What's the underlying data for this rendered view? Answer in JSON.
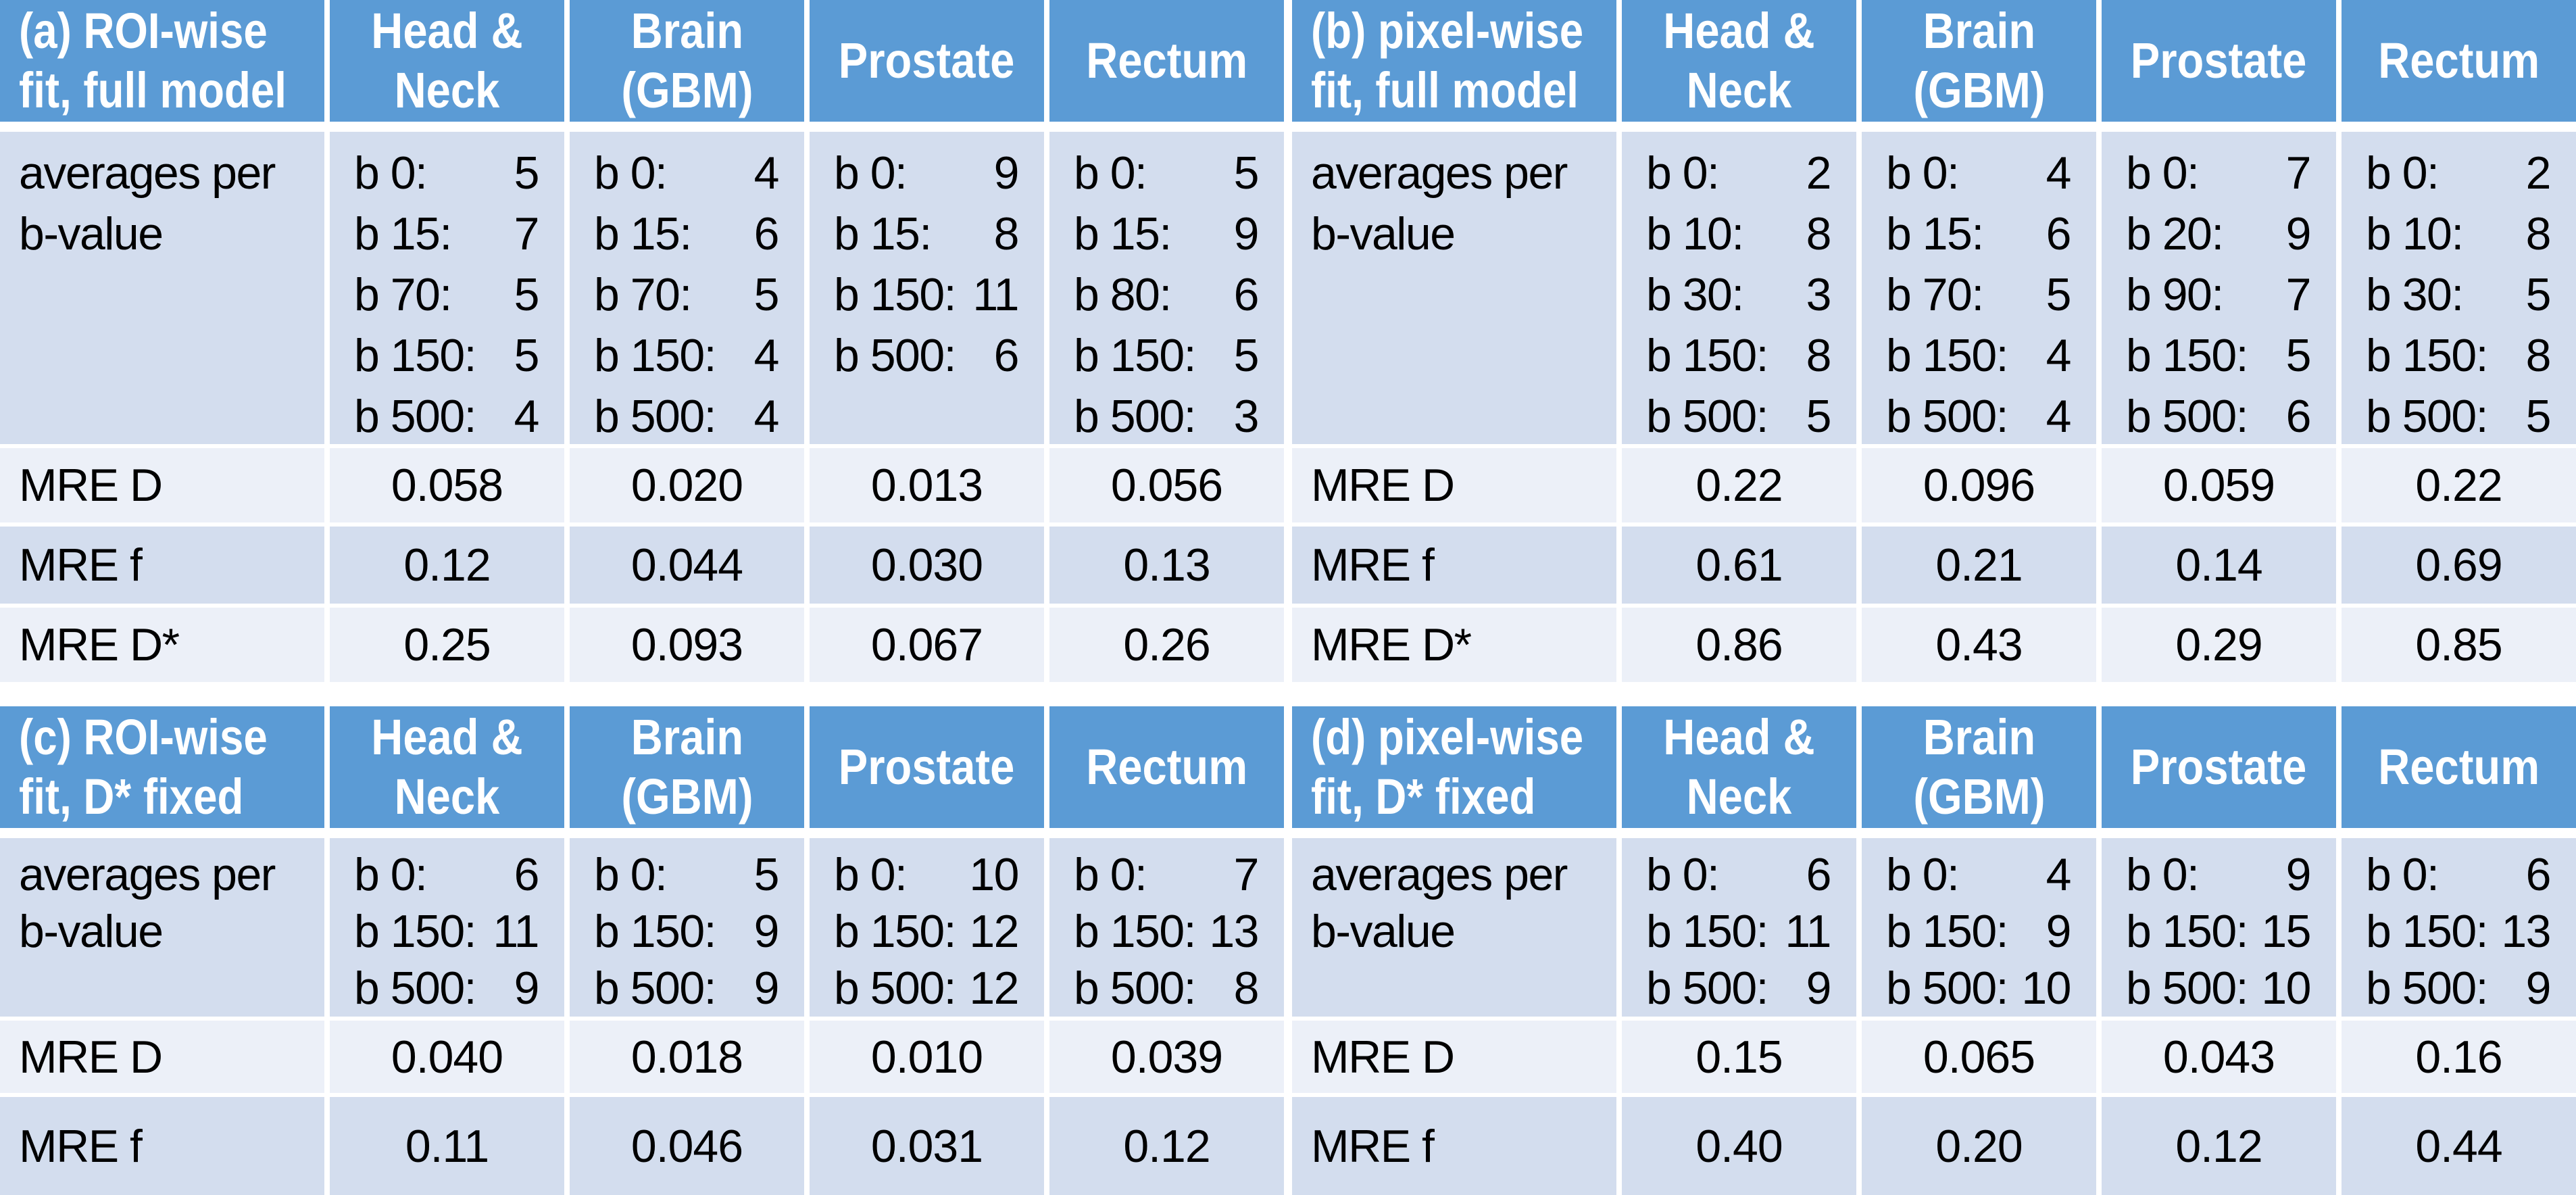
{
  "colors": {
    "header_bg": "#5B9BD5",
    "header_text": "#FFFFFF",
    "band_dark": "#D3DDEE",
    "band_light": "#ECF0F8",
    "page_bg": "#FFFFFF",
    "body_text": "#000000"
  },
  "tables": [
    {
      "key": "a",
      "compact": false,
      "title_lines": [
        "(a) ROI-wise",
        "fit, full model"
      ],
      "col_headers": [
        [
          "Head &",
          "Neck"
        ],
        [
          "Brain",
          "(GBM)"
        ],
        [
          "Prostate"
        ],
        [
          "Rectum"
        ]
      ],
      "row_header": [
        "averages per",
        "b-value"
      ],
      "b_values": [
        [
          {
            "b": "b 0:",
            "v": "5"
          },
          {
            "b": "b 15:",
            "v": "7"
          },
          {
            "b": "b 70:",
            "v": "5"
          },
          {
            "b": "b 150:",
            "v": "5"
          },
          {
            "b": "b 500:",
            "v": "4"
          }
        ],
        [
          {
            "b": "b 0:",
            "v": "4"
          },
          {
            "b": "b 15:",
            "v": "6"
          },
          {
            "b": "b 70:",
            "v": "5"
          },
          {
            "b": "b 150:",
            "v": "4"
          },
          {
            "b": "b 500:",
            "v": "4"
          }
        ],
        [
          {
            "b": "b 0:",
            "v": "9"
          },
          {
            "b": "b 15:",
            "v": "8"
          },
          {
            "b": "b 150:",
            "v": "11"
          },
          {
            "b": "b 500:",
            "v": "6"
          }
        ],
        [
          {
            "b": "b 0:",
            "v": "5"
          },
          {
            "b": "b 15:",
            "v": "9"
          },
          {
            "b": "b 80:",
            "v": "6"
          },
          {
            "b": "b 150:",
            "v": "5"
          },
          {
            "b": "b 500:",
            "v": "3"
          }
        ]
      ],
      "metrics": [
        {
          "label": "MRE D",
          "values": [
            "0.058",
            "0.020",
            "0.013",
            "0.056"
          ]
        },
        {
          "label": "MRE f",
          "values": [
            "0.12",
            "0.044",
            "0.030",
            "0.13"
          ]
        },
        {
          "label": "MRE D*",
          "values": [
            "0.25",
            "0.093",
            "0.067",
            "0.26"
          ]
        }
      ]
    },
    {
      "key": "b",
      "compact": false,
      "title_lines": [
        "(b) pixel-wise",
        "fit, full model"
      ],
      "col_headers": [
        [
          "Head &",
          "Neck"
        ],
        [
          "Brain",
          "(GBM)"
        ],
        [
          "Prostate"
        ],
        [
          "Rectum"
        ]
      ],
      "row_header": [
        "averages per",
        "b-value"
      ],
      "b_values": [
        [
          {
            "b": "b 0:",
            "v": "2"
          },
          {
            "b": "b 10:",
            "v": "8"
          },
          {
            "b": "b 30:",
            "v": "3"
          },
          {
            "b": "b 150:",
            "v": "8"
          },
          {
            "b": "b 500:",
            "v": "5"
          }
        ],
        [
          {
            "b": "b 0:",
            "v": "4"
          },
          {
            "b": "b 15:",
            "v": "6"
          },
          {
            "b": "b 70:",
            "v": "5"
          },
          {
            "b": "b 150:",
            "v": "4"
          },
          {
            "b": "b 500:",
            "v": "4"
          }
        ],
        [
          {
            "b": "b 0:",
            "v": "7"
          },
          {
            "b": "b 20:",
            "v": "9"
          },
          {
            "b": "b 90:",
            "v": "7"
          },
          {
            "b": "b 150:",
            "v": "5"
          },
          {
            "b": "b 500:",
            "v": "6"
          }
        ],
        [
          {
            "b": "b 0:",
            "v": "2"
          },
          {
            "b": "b 10:",
            "v": "8"
          },
          {
            "b": "b 30:",
            "v": "5"
          },
          {
            "b": "b 150:",
            "v": "8"
          },
          {
            "b": "b 500:",
            "v": "5"
          }
        ]
      ],
      "metrics": [
        {
          "label": "MRE D",
          "values": [
            "0.22",
            "0.096",
            "0.059",
            "0.22"
          ]
        },
        {
          "label": "MRE f",
          "values": [
            "0.61",
            "0.21",
            "0.14",
            "0.69"
          ]
        },
        {
          "label": "MRE D*",
          "values": [
            "0.86",
            "0.43",
            "0.29",
            "0.85"
          ]
        }
      ]
    },
    {
      "key": "c",
      "compact": true,
      "title_lines": [
        "(c) ROI-wise",
        "fit, D* fixed"
      ],
      "col_headers": [
        [
          "Head &",
          "Neck"
        ],
        [
          "Brain",
          "(GBM)"
        ],
        [
          "Prostate"
        ],
        [
          "Rectum"
        ]
      ],
      "row_header": [
        "averages per",
        "b-value"
      ],
      "b_values": [
        [
          {
            "b": "b 0:",
            "v": "6"
          },
          {
            "b": "b 150:",
            "v": "11"
          },
          {
            "b": "b 500:",
            "v": "9"
          }
        ],
        [
          {
            "b": "b 0:",
            "v": "5"
          },
          {
            "b": "b 150:",
            "v": "9"
          },
          {
            "b": "b 500:",
            "v": "9"
          }
        ],
        [
          {
            "b": "b 0:",
            "v": "10"
          },
          {
            "b": "b 150:",
            "v": "12"
          },
          {
            "b": "b 500:",
            "v": "12"
          }
        ],
        [
          {
            "b": "b 0:",
            "v": "7"
          },
          {
            "b": "b 150:",
            "v": "13"
          },
          {
            "b": "b 500:",
            "v": "8"
          }
        ]
      ],
      "metrics": [
        {
          "label": "MRE D",
          "values": [
            "0.040",
            "0.018",
            "0.010",
            "0.039"
          ]
        },
        {
          "label": "MRE f",
          "values": [
            "0.11",
            "0.046",
            "0.031",
            "0.12"
          ]
        }
      ]
    },
    {
      "key": "d",
      "compact": true,
      "title_lines": [
        "(d) pixel-wise",
        "fit, D* fixed"
      ],
      "col_headers": [
        [
          "Head &",
          "Neck"
        ],
        [
          "Brain",
          "(GBM)"
        ],
        [
          "Prostate"
        ],
        [
          "Rectum"
        ]
      ],
      "row_header": [
        "averages per",
        "b-value"
      ],
      "b_values": [
        [
          {
            "b": "b 0:",
            "v": "6"
          },
          {
            "b": "b 150:",
            "v": "11"
          },
          {
            "b": "b 500:",
            "v": "9"
          }
        ],
        [
          {
            "b": "b 0:",
            "v": "4"
          },
          {
            "b": "b 150:",
            "v": "9"
          },
          {
            "b": "b 500:",
            "v": "10"
          }
        ],
        [
          {
            "b": "b 0:",
            "v": "9"
          },
          {
            "b": "b 150:",
            "v": "15"
          },
          {
            "b": "b 500:",
            "v": "10"
          }
        ],
        [
          {
            "b": "b 0:",
            "v": "6"
          },
          {
            "b": "b 150:",
            "v": "13"
          },
          {
            "b": "b 500:",
            "v": "9"
          }
        ]
      ],
      "metrics": [
        {
          "label": "MRE D",
          "values": [
            "0.15",
            "0.065",
            "0.043",
            "0.16"
          ]
        },
        {
          "label": "MRE f",
          "values": [
            "0.40",
            "0.20",
            "0.12",
            "0.44"
          ]
        }
      ]
    }
  ]
}
